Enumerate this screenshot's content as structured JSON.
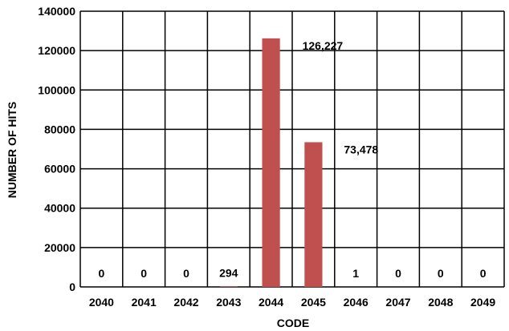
{
  "chart_data": {
    "type": "bar",
    "xlabel": "CODE",
    "ylabel": "NUMBER OF HITS",
    "categories": [
      "2040",
      "2041",
      "2042",
      "2043",
      "2044",
      "2045",
      "2046",
      "2047",
      "2048",
      "2049"
    ],
    "values": [
      0,
      0,
      0,
      294,
      126227,
      73478,
      1,
      0,
      0,
      0
    ],
    "data_labels": [
      "0",
      "0",
      "0",
      "294",
      "126,227",
      "73,478",
      "1",
      "0",
      "0",
      "0"
    ],
    "yticks": [
      "0",
      "20000",
      "40000",
      "60000",
      "80000",
      "100000",
      "120000",
      "140000"
    ],
    "ylim": [
      0,
      140000
    ],
    "grid": true,
    "legend": false,
    "colors": {
      "bar": "#c0504d",
      "grid": "#000000",
      "background": "#ffffff"
    }
  }
}
